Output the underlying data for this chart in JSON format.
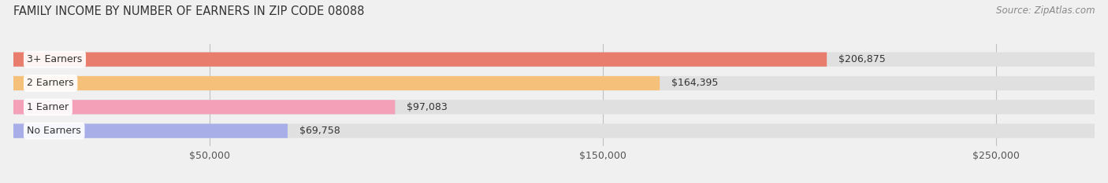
{
  "title": "FAMILY INCOME BY NUMBER OF EARNERS IN ZIP CODE 08088",
  "source": "Source: ZipAtlas.com",
  "categories": [
    "No Earners",
    "1 Earner",
    "2 Earners",
    "3+ Earners"
  ],
  "values": [
    69758,
    97083,
    164395,
    206875
  ],
  "bar_colors": [
    "#a8aee8",
    "#f4a0b8",
    "#f5c07a",
    "#e87d6e"
  ],
  "label_colors": [
    "#555555",
    "#555555",
    "#555555",
    "#ffffff"
  ],
  "value_labels": [
    "$69,758",
    "$97,083",
    "$164,395",
    "$206,875"
  ],
  "xlim_min": 0,
  "xlim_max": 275000,
  "xticks": [
    50000,
    150000,
    250000
  ],
  "xtick_labels": [
    "$50,000",
    "$150,000",
    "$250,000"
  ],
  "background_color": "#f0f0f0",
  "bar_bg_color": "#e0e0e0",
  "title_fontsize": 10.5,
  "source_fontsize": 8.5,
  "label_fontsize": 9,
  "value_fontsize": 9,
  "tick_fontsize": 9
}
